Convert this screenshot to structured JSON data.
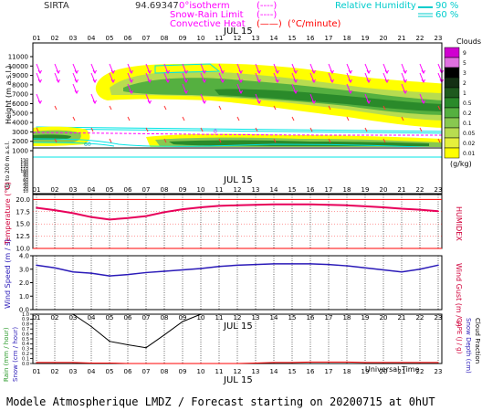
{
  "header": {
    "station": "SIRTA",
    "coord": "94.69347",
    "isotherm_label": "0°isotherm",
    "snow_rain_label": "Snow-Rain Limit",
    "convective_label": "Convective Heat",
    "convective_unit": "(°C/minute)",
    "rh_label": "Relative Humidity",
    "rh_90": "90 %",
    "rh_60": "60 %"
  },
  "footer": {
    "title": "Modele Atmospherique LMDZ / Forecast starting on 20200715 at 0hUT"
  },
  "colors": {
    "magenta": "#ff00ff",
    "cyan": "#00e5e5",
    "red": "#ff0000",
    "blue": "#0000cc",
    "grey": "#808080",
    "temp_line": "#e8005a",
    "wind_line": "#2a1ab8"
  },
  "hours": [
    "01",
    "02",
    "03",
    "04",
    "05",
    "06",
    "07",
    "08",
    "09",
    "10",
    "11",
    "12",
    "13",
    "14",
    "15",
    "16",
    "17",
    "18",
    "19",
    "20",
    "21",
    "22",
    "23"
  ],
  "chart_data": [
    {
      "type": "heatmap",
      "panel": "clouds",
      "date_label": "JUL 15",
      "ylabel": "Height (m a.s.l.)",
      "ylabel_low": "Up to 200 m a.s.l.",
      "yticks": [
        "11000",
        "10000",
        "9000",
        "8000",
        "7000",
        "6000",
        "5000",
        "4000",
        "3000",
        "2000",
        "1000"
      ],
      "yticks_low": [
        "150",
        "140",
        "130",
        "120",
        "110",
        "100",
        "90",
        "80",
        "70",
        "60",
        "50",
        "40",
        "30",
        "20",
        "10"
      ],
      "legend_title": "Clouds",
      "legend_unit": "(g/kg)",
      "legend_ticks": [
        "9",
        "5",
        "3",
        "2",
        "1",
        "0.5",
        "0.2",
        "0.1",
        "0.05",
        "0.02",
        "0.01"
      ],
      "legend_colors": [
        "#d000d0",
        "#e070e0",
        "#000000",
        "#143014",
        "#1e5a1e",
        "#2a8a2a",
        "#55b040",
        "#88c850",
        "#b8dc50",
        "#e6f03c",
        "#ffff00"
      ],
      "isotherm_label": "0",
      "rh_contour_label": "60"
    },
    {
      "type": "line",
      "panel": "temperature",
      "date_label": "JUL 15",
      "ylabel": "Temperature (°C)",
      "ylabel_right": "HUMIDEX",
      "yticks": [
        "20.0",
        "17.5",
        "15.0",
        "12.5",
        "10.0"
      ],
      "ylim": [
        10.0,
        21.0
      ],
      "x": [
        "01",
        "02",
        "03",
        "04",
        "05",
        "06",
        "07",
        "08",
        "09",
        "10",
        "11",
        "12",
        "13",
        "14",
        "15",
        "16",
        "17",
        "18",
        "19",
        "20",
        "21",
        "22",
        "23"
      ],
      "series": [
        {
          "values": [
            18.3,
            17.8,
            17.2,
            16.4,
            15.9,
            16.2,
            16.6,
            17.4,
            18.0,
            18.4,
            18.7,
            18.8,
            18.9,
            19.0,
            19.0,
            19.0,
            18.9,
            18.8,
            18.6,
            18.4,
            18.1,
            17.9,
            17.6
          ]
        }
      ]
    },
    {
      "type": "line",
      "panel": "wind",
      "ylabel": "Wind Speed (m / s)",
      "ylabel_right": "Wind Gust (m / s)",
      "yticks": [
        "4.0",
        "3.0",
        "2.0",
        "1.0",
        "0.0"
      ],
      "ylim": [
        0.0,
        4.0
      ],
      "x": [
        "01",
        "02",
        "03",
        "04",
        "05",
        "06",
        "07",
        "08",
        "09",
        "10",
        "11",
        "12",
        "13",
        "14",
        "15",
        "16",
        "17",
        "18",
        "19",
        "20",
        "21",
        "22",
        "23"
      ],
      "series": [
        {
          "values": [
            3.3,
            3.1,
            2.8,
            2.7,
            2.5,
            2.6,
            2.75,
            2.85,
            2.95,
            3.05,
            3.2,
            3.3,
            3.35,
            3.4,
            3.4,
            3.4,
            3.35,
            3.25,
            3.1,
            2.95,
            2.8,
            3.0,
            3.3
          ]
        }
      ]
    },
    {
      "type": "line",
      "panel": "precipitation",
      "date_label": "JUL 15",
      "x_title": "Universal Time",
      "ylabel": "Rain (mm / hour)",
      "ylabel2": "Snow (cm / hour)",
      "ylabel_right": "CAPE (J / g)",
      "ylabel_right2": "Snow Depth (cm)",
      "ylabel_right3": "Cloud Fraction",
      "yticks": [
        "1.0",
        "0.9",
        "0.8",
        "0.7",
        "0.6",
        "0.5",
        "0.4",
        "0.3",
        "0.2",
        "0.1",
        "0.0"
      ],
      "ylim": [
        0.0,
        1.0
      ],
      "x": [
        "01",
        "02",
        "03",
        "04",
        "05",
        "06",
        "07",
        "08",
        "09",
        "10",
        "11",
        "12",
        "13",
        "14",
        "15",
        "16",
        "17",
        "18",
        "19",
        "20",
        "21",
        "22",
        "23"
      ],
      "series": [
        {
          "name": "Cloud Fraction",
          "values": [
            1.0,
            1.0,
            1.0,
            0.75,
            0.45,
            0.38,
            0.32,
            0.58,
            0.85,
            1.0,
            1.0,
            1.0,
            1.0,
            1.0,
            1.0,
            1.0,
            1.0,
            1.0,
            1.0,
            1.0,
            1.0,
            1.0,
            1.0
          ]
        },
        {
          "name": "CAPE (J / g)",
          "values": [
            0.02,
            0.02,
            0.02,
            0.01,
            0.01,
            0.0,
            0.0,
            0.0,
            0.0,
            0.0,
            0.0,
            0.0,
            0.01,
            0.02,
            0.02,
            0.03,
            0.03,
            0.03,
            0.02,
            0.02,
            0.02,
            0.02,
            0.02
          ]
        }
      ]
    }
  ]
}
